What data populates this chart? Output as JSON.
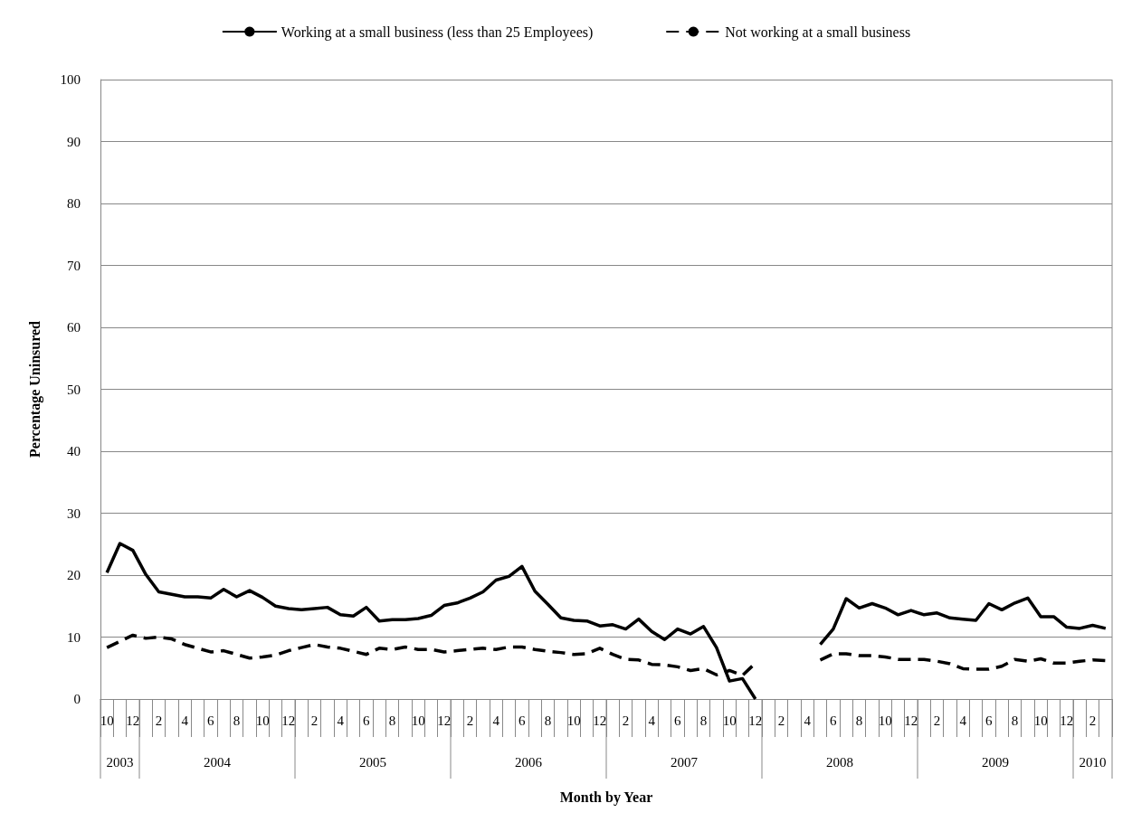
{
  "chart_data": {
    "type": "line",
    "xlabel": "Month by Year",
    "ylabel": "Percentage Uninsured",
    "categories": [
      "10",
      null,
      "12",
      null,
      "2",
      null,
      "4",
      null,
      "6",
      null,
      "8",
      null,
      "10",
      null,
      "12",
      null,
      "2",
      null,
      "4",
      null,
      "6",
      null,
      "8",
      null,
      "10",
      null,
      "12",
      null,
      "2",
      null,
      "4",
      null,
      "6",
      null,
      "8",
      null,
      "10",
      null,
      "12",
      null,
      "2",
      null,
      "4",
      null,
      "6",
      null,
      "8",
      null,
      "10",
      null,
      "12",
      null,
      "2",
      null,
      "4",
      null,
      "6",
      null,
      "8",
      null,
      "10",
      null,
      "12",
      null,
      "2",
      null,
      "4",
      null,
      "6",
      null,
      "8",
      null,
      "10",
      null,
      "12",
      null,
      "2",
      null
    ],
    "series": [
      {
        "name": "Working at a small business (less than 25 Employees)",
        "color": "#000000",
        "line_style": "solid",
        "values": [
          20.4,
          25.1,
          24.0,
          20.1,
          17.3,
          16.9,
          16.5,
          16.5,
          16.3,
          17.7,
          16.5,
          17.5,
          16.4,
          15.0,
          14.6,
          14.4,
          14.6,
          14.8,
          13.6,
          13.4,
          14.8,
          12.6,
          12.8,
          12.8,
          13.0,
          13.5,
          15.1,
          15.5,
          16.3,
          17.3,
          19.2,
          19.8,
          21.4,
          17.4,
          15.3,
          13.1,
          12.7,
          12.6,
          11.8,
          12.0,
          11.3,
          12.9,
          10.9,
          9.6,
          11.3,
          10.5,
          11.7,
          8.3,
          2.9,
          3.3,
          0,
          null,
          null,
          null,
          null,
          8.8,
          11.3,
          16.2,
          14.7,
          15.4,
          14.7,
          13.6,
          14.3,
          13.6,
          13.9,
          13.1,
          12.9,
          12.7,
          15.4,
          14.4,
          15.5,
          16.3,
          13.3,
          13.3,
          11.6,
          11.4,
          11.9,
          11.4
        ]
      },
      {
        "name": "Not working at a small business",
        "color": "#000000",
        "line_style": "dashed",
        "values": [
          8.3,
          9.3,
          10.3,
          9.8,
          10.0,
          9.7,
          8.8,
          8.2,
          7.6,
          7.8,
          7.2,
          6.6,
          6.8,
          7.1,
          7.8,
          8.3,
          8.8,
          8.4,
          8.2,
          7.7,
          7.2,
          8.2,
          8.0,
          8.4,
          8.0,
          8.0,
          7.6,
          7.8,
          8.0,
          8.2,
          8.0,
          8.4,
          8.4,
          8.0,
          7.7,
          7.5,
          7.2,
          7.3,
          8.2,
          7.2,
          6.4,
          6.3,
          5.6,
          5.5,
          5.2,
          4.6,
          4.9,
          3.9,
          4.6,
          3.8,
          5.8,
          null,
          null,
          null,
          null,
          6.3,
          7.3,
          7.3,
          7.0,
          7.0,
          6.8,
          6.4,
          6.4,
          6.4,
          6.1,
          5.7,
          4.9,
          4.8,
          4.8,
          5.3,
          6.4,
          6.1,
          6.5,
          5.8,
          5.8,
          6.1,
          6.3,
          6.2
        ]
      }
    ],
    "ylim": [
      0,
      100
    ],
    "yticks": [
      0,
      10,
      20,
      30,
      40,
      50,
      60,
      70,
      80,
      90,
      100
    ],
    "grid": "y",
    "legend": "top",
    "marker": "none",
    "annotations": [
      "2003",
      "2004",
      "2005",
      "2006",
      "2007",
      "2008",
      "2009",
      "2010"
    ]
  }
}
